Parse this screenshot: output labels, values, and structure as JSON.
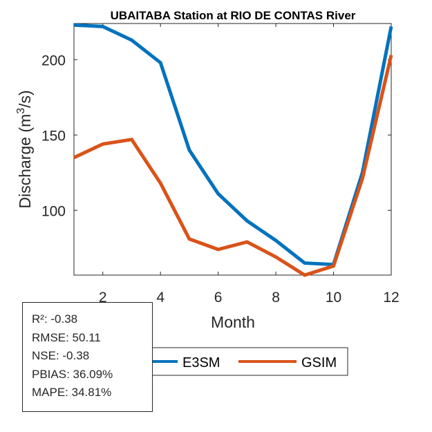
{
  "chart_data": {
    "type": "line",
    "title": "UBAITABA  Station at  RIO DE CONTAS  River",
    "xlabel": "Month",
    "ylabel": "Discharge (m³/s)",
    "ylabel_parts": {
      "base": "Discharge (m",
      "sup": "3",
      "tail": "/s)"
    },
    "x": [
      1,
      2,
      3,
      4,
      5,
      6,
      7,
      8,
      9,
      10,
      11,
      12
    ],
    "xlim": [
      1,
      12
    ],
    "ylim": [
      57,
      224
    ],
    "xticks": [
      2,
      4,
      6,
      8,
      10,
      12
    ],
    "yticks": [
      100,
      150,
      200
    ],
    "grid": false,
    "series": [
      {
        "name": "E3SM",
        "color": "#0072BD",
        "values": [
          223,
          222,
          213,
          198,
          140,
          111,
          93,
          80,
          65,
          64,
          125,
          222
        ]
      },
      {
        "name": "GSIM",
        "color": "#D95319",
        "values": [
          135,
          144,
          147,
          118,
          81,
          74,
          79,
          69,
          57,
          63,
          121,
          203
        ]
      }
    ],
    "legend": {
      "placement": "bottom-center",
      "orientation": "horizontal",
      "entries": [
        "E3SM",
        "GSIM"
      ]
    }
  },
  "stats": {
    "lines": [
      "R²: -0.38",
      "RMSE: 50.11",
      "NSE: -0.38",
      "PBIAS: 36.09%",
      "MAPE: 34.81%"
    ]
  }
}
